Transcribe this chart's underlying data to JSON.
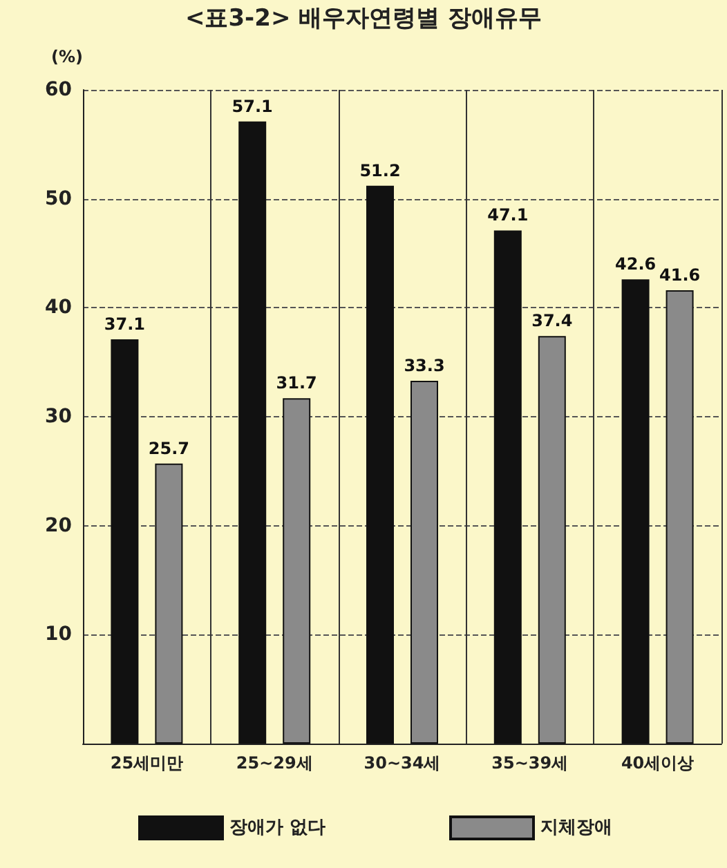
{
  "chart_data": {
    "type": "bar",
    "title": "<표3-2> 배우자연령별 장애유무",
    "ylabel": "(%)",
    "categories": [
      "25세미만",
      "25~29세",
      "30~34세",
      "35~39세",
      "40세이상"
    ],
    "series": [
      {
        "name": "장애가 없다",
        "color": "#111111",
        "values": [
          37.1,
          57.1,
          51.2,
          47.1,
          42.6
        ]
      },
      {
        "name": "지체장애",
        "color": "#8a8a8a",
        "values": [
          25.7,
          31.7,
          33.3,
          37.4,
          41.6
        ]
      }
    ],
    "ylim": [
      0,
      60
    ],
    "yticks": [
      {
        "value": 0,
        "label": null
      },
      10,
      20,
      30,
      40,
      50,
      60
    ],
    "grid": true,
    "legend": "bottom",
    "data_labels": true
  }
}
